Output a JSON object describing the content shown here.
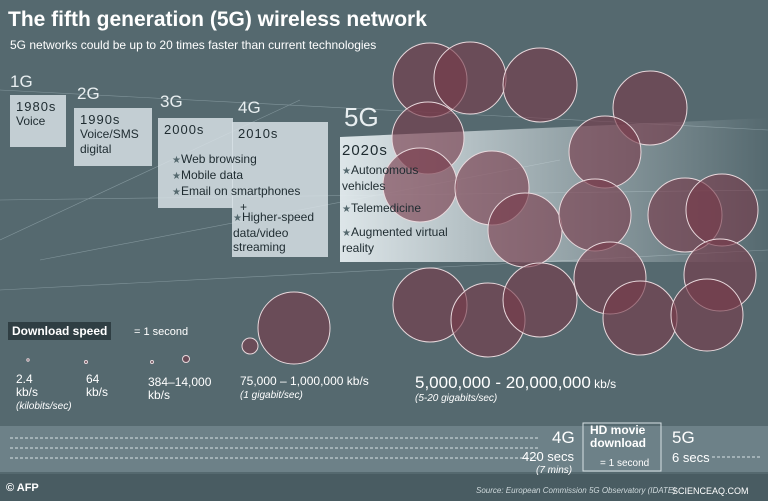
{
  "header": {
    "title": "The fifth generation (5G) wireless network",
    "subtitle": "5G networks could be up to 20 times faster than current technologies"
  },
  "generations": [
    {
      "gen": "1G",
      "decade": "1980s",
      "features": [
        "Voice"
      ]
    },
    {
      "gen": "2G",
      "decade": "1990s",
      "features": [
        "Voice/SMS digital"
      ]
    },
    {
      "gen": "3G",
      "decade": "2000s",
      "features": [
        "Web browsing",
        "Mobile data",
        "Email on smartphones"
      ]
    },
    {
      "gen": "4G",
      "decade": "2010s",
      "plus": "+",
      "features": [
        "Higher-speed data/video streaming"
      ]
    },
    {
      "gen": "5G",
      "decade": "2020s",
      "features": [
        "Autonomous vehicles",
        "Telemedicine",
        "Augmented virtual reality"
      ]
    }
  ],
  "download": {
    "label": "Download speed",
    "unit_note": "= 1 second",
    "speeds": [
      {
        "value": "2.4",
        "unit": "kb/s",
        "note": "(kilobits/sec)"
      },
      {
        "value": "64",
        "unit": "kb/s"
      },
      {
        "value": "384–14,000",
        "unit": "kb/s"
      },
      {
        "value": "75,000 – 1,000,000",
        "unit": "kb/s",
        "note": "(1 gigabit/sec)"
      },
      {
        "value": "5,000,000 - 20,000,000",
        "unit": "kb/s",
        "note": "(5-20 gigabits/sec)"
      }
    ]
  },
  "hd_movie": {
    "label": "HD movie download",
    "unit_note": "= 1 second",
    "gen4": {
      "gen": "4G",
      "time": "420 secs",
      "note": "(7 mins)"
    },
    "gen5": {
      "gen": "5G",
      "time": "6 secs"
    }
  },
  "footer": {
    "credit": "© AFP",
    "source": "Source: European Commission 5G Observatory (IDATE)",
    "watermark": "SCIENCEAQ.COM"
  }
}
